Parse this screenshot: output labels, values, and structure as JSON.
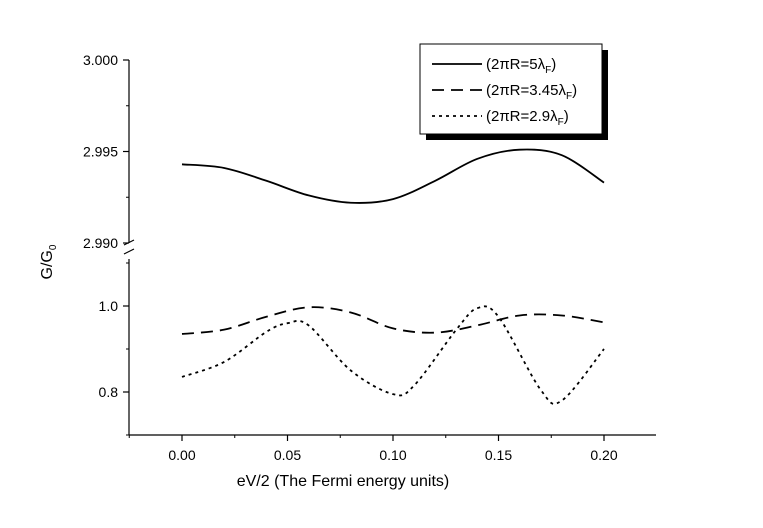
{
  "chart_data": {
    "type": "line",
    "title": "",
    "xlabel": "eV/2 (The Fermi energy units)",
    "ylabel": "G/G",
    "ylabel_sub": "0",
    "xlim": [
      -0.025,
      0.225
    ],
    "xticks": [
      "0.00",
      "0.05",
      "0.10",
      "0.15",
      "0.20"
    ],
    "xtick_values": [
      0.0,
      0.05,
      0.1,
      0.15,
      0.2
    ],
    "y_axis_break": true,
    "upper_panel": {
      "ylim": [
        2.99,
        3.0
      ],
      "yticks": [
        "2.990",
        "2.995",
        "3.000"
      ],
      "ytick_values": [
        2.99,
        2.995,
        3.0
      ]
    },
    "lower_panel": {
      "ylim": [
        0.7,
        1.1
      ],
      "yticks": [
        "0.8",
        "1.0"
      ],
      "ytick_values": [
        0.8,
        1.0
      ]
    },
    "grid": false,
    "legend_position": "top-right",
    "series": [
      {
        "name": "(2πR=5λ",
        "name_sub": "F",
        "name_close": ")",
        "style": "solid",
        "panel": "upper",
        "x": [
          0.0,
          0.02,
          0.04,
          0.06,
          0.08,
          0.1,
          0.12,
          0.14,
          0.16,
          0.18,
          0.2
        ],
        "y": [
          2.9943,
          2.9941,
          2.9934,
          2.9926,
          2.9922,
          2.9924,
          2.9934,
          2.9946,
          2.9951,
          2.9948,
          2.9933
        ]
      },
      {
        "name": "(2πR=3.45λ",
        "name_sub": "F",
        "name_close": ")",
        "style": "dashed",
        "panel": "lower",
        "x": [
          0.0,
          0.02,
          0.04,
          0.06,
          0.08,
          0.1,
          0.12,
          0.14,
          0.16,
          0.18,
          0.2
        ],
        "y": [
          0.935,
          0.945,
          0.975,
          0.997,
          0.985,
          0.948,
          0.938,
          0.955,
          0.978,
          0.978,
          0.962
        ]
      },
      {
        "name": "(2πR=2.9λ",
        "name_sub": "F",
        "name_close": ")",
        "style": "dotted",
        "panel": "lower",
        "x": [
          0.0,
          0.02,
          0.04,
          0.05,
          0.06,
          0.08,
          0.1,
          0.11,
          0.13,
          0.14,
          0.15,
          0.17,
          0.18,
          0.2
        ],
        "y": [
          0.835,
          0.87,
          0.94,
          0.96,
          0.955,
          0.85,
          0.795,
          0.815,
          0.945,
          0.995,
          0.975,
          0.805,
          0.78,
          0.9
        ]
      }
    ]
  }
}
